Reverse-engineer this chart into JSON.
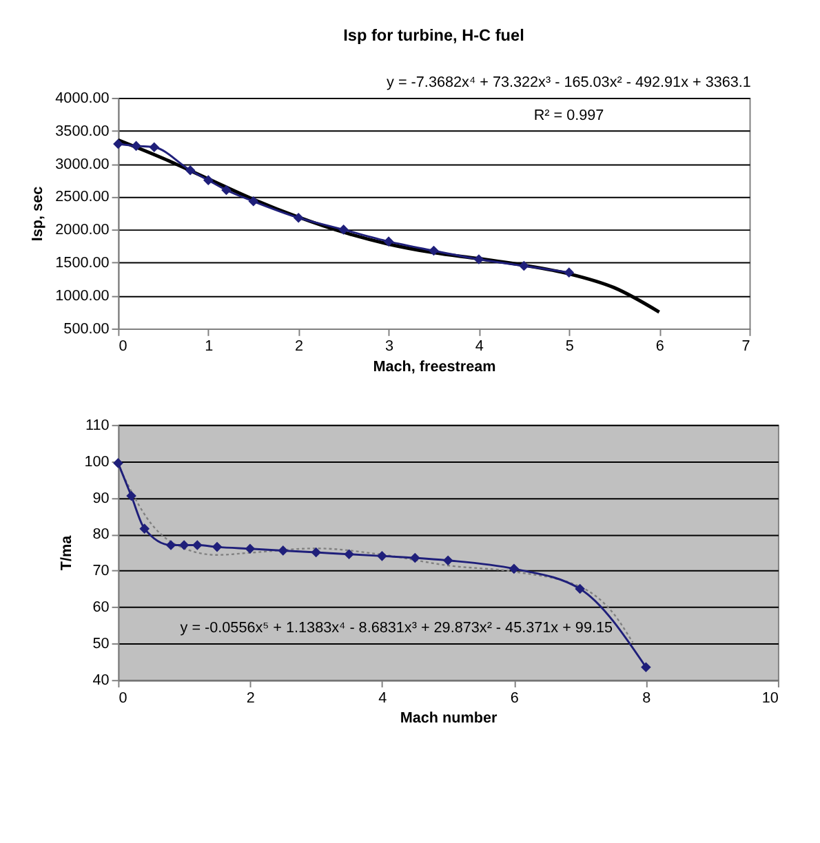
{
  "chart_data": [
    {
      "type": "line",
      "title": "Isp for turbine, H-C fuel",
      "xlabel": "Mach, freestream",
      "ylabel": "Isp, sec",
      "xlim": [
        0,
        7
      ],
      "xticks": [
        {
          "value": 0,
          "label": "0"
        },
        {
          "value": 1,
          "label": "1"
        },
        {
          "value": 2,
          "label": "2"
        },
        {
          "value": 3,
          "label": "3"
        },
        {
          "value": 4,
          "label": "4"
        },
        {
          "value": 5,
          "label": "5"
        },
        {
          "value": 6,
          "label": "6"
        },
        {
          "value": 7,
          "label": "7"
        }
      ],
      "ylim": [
        500,
        4000
      ],
      "yticks": [
        {
          "value": 500,
          "label": "500.00"
        },
        {
          "value": 1000,
          "label": "1000.00"
        },
        {
          "value": 1500,
          "label": "1500.00"
        },
        {
          "value": 2000,
          "label": "2000.00"
        },
        {
          "value": 2500,
          "label": "2500.00"
        },
        {
          "value": 3000,
          "label": "3000.00"
        },
        {
          "value": 3500,
          "label": "3500.00"
        },
        {
          "value": 4000,
          "label": "4000.00"
        }
      ],
      "grid": "y",
      "series": [
        {
          "type": "line",
          "color": "#000000",
          "marker": "none",
          "line_style": "solid",
          "x": [
            0,
            0.5,
            1,
            1.5,
            2,
            2.5,
            3,
            3.5,
            4,
            4.5,
            5,
            5.5,
            6
          ],
          "values": [
            3360,
            3080,
            2770,
            2460,
            2190,
            1960,
            1780,
            1650,
            1560,
            1460,
            1330,
            1120,
            750
          ]
        },
        {
          "color": "#1f1f7a",
          "marker": "diamond",
          "line_style": "solid",
          "x": [
            0,
            0.2,
            0.4,
            0.8,
            1.0,
            1.2,
            1.5,
            2,
            2.5,
            3,
            3.5,
            4,
            4.5,
            5
          ],
          "values": [
            3300,
            3270,
            3250,
            2900,
            2750,
            2600,
            2430,
            2180,
            2000,
            1820,
            1680,
            1550,
            1450,
            1350
          ]
        }
      ],
      "annotations": [
        "y = -7.3682x⁴ + 73.322x³ - 165.03x² - 492.91x + 3363.1",
        "R² = 0.997"
      ]
    },
    {
      "type": "line",
      "xlabel": "Mach number",
      "ylabel": "T/ma",
      "xlim": [
        0,
        10
      ],
      "xticks": [
        0,
        2,
        4,
        6,
        8,
        10
      ],
      "ylim": [
        40,
        110
      ],
      "yticks": [
        40,
        50,
        60,
        70,
        80,
        90,
        100,
        110
      ],
      "grid": "y",
      "series": [
        {
          "color": "#808080",
          "marker": "none",
          "line_style": "dotted",
          "x": [
            0,
            0.5,
            1,
            1.5,
            2,
            3,
            4,
            5,
            6,
            7,
            7.5,
            7.8
          ],
          "values": [
            99,
            82.9,
            76.1,
            74.3,
            74.9,
            76.1,
            74.4,
            71.4,
            69.7,
            65.6,
            58.4,
            50.3
          ]
        },
        {
          "color": "#1f1f7a",
          "marker": "diamond",
          "line_style": "solid",
          "x": [
            0,
            0.2,
            0.4,
            0.8,
            1,
            1.2,
            1.5,
            2,
            2.5,
            3,
            3.5,
            4,
            4.5,
            5,
            6,
            7,
            8
          ],
          "values": [
            99.5,
            90.5,
            81.5,
            77,
            77,
            77,
            76.5,
            76,
            75.5,
            75,
            74.5,
            74,
            73.5,
            72.8,
            70.5,
            65,
            43.5
          ]
        }
      ],
      "annotations": [
        "y = -0.0556x⁵ + 1.1383x⁴ - 8.6831x³ + 29.873x² - 45.371x + 99.15"
      ]
    }
  ]
}
